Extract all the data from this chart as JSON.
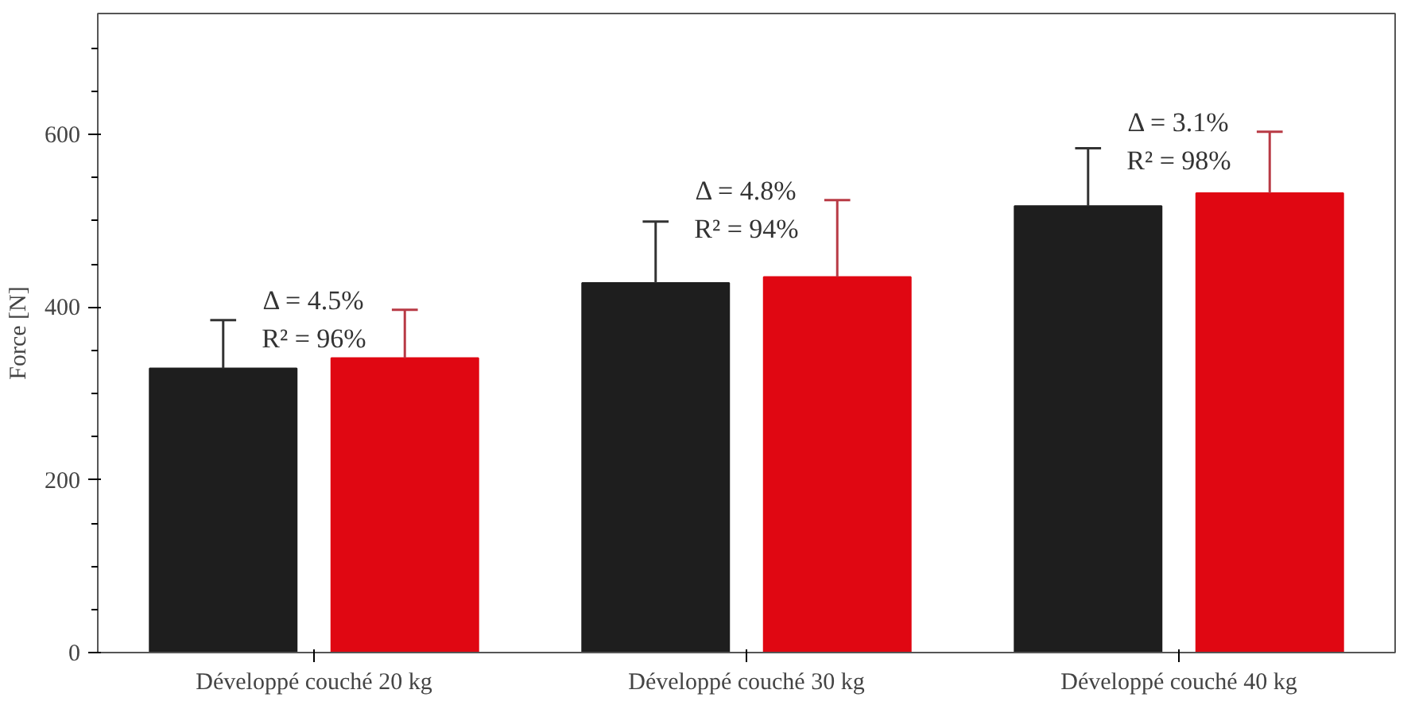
{
  "chart_data": {
    "type": "bar",
    "ylabel": "Force [N]",
    "categories": [
      "Développé couché 20 kg",
      "Développé couché 30 kg",
      "Développé couché 40 kg"
    ],
    "series": [
      {
        "color": "#1e1e1e",
        "values": [
          329,
          428,
          517
        ],
        "errors": [
          [
            329,
            385
          ],
          [
            428,
            499
          ],
          [
            517,
            584
          ]
        ]
      },
      {
        "color": "#e00712",
        "values": [
          341,
          435,
          532
        ],
        "errors": [
          [
            341,
            397
          ],
          [
            435,
            524
          ],
          [
            532,
            603
          ]
        ]
      }
    ],
    "ylim": [
      0,
      740
    ],
    "yticks": [
      0,
      200,
      400,
      600
    ],
    "grid": false,
    "annotations": [
      "Δ = 4.5%\nR² = 96%",
      "Δ = 4.8%\nR² = 94%",
      "Δ = 3.1%\nR² = 98%"
    ]
  }
}
